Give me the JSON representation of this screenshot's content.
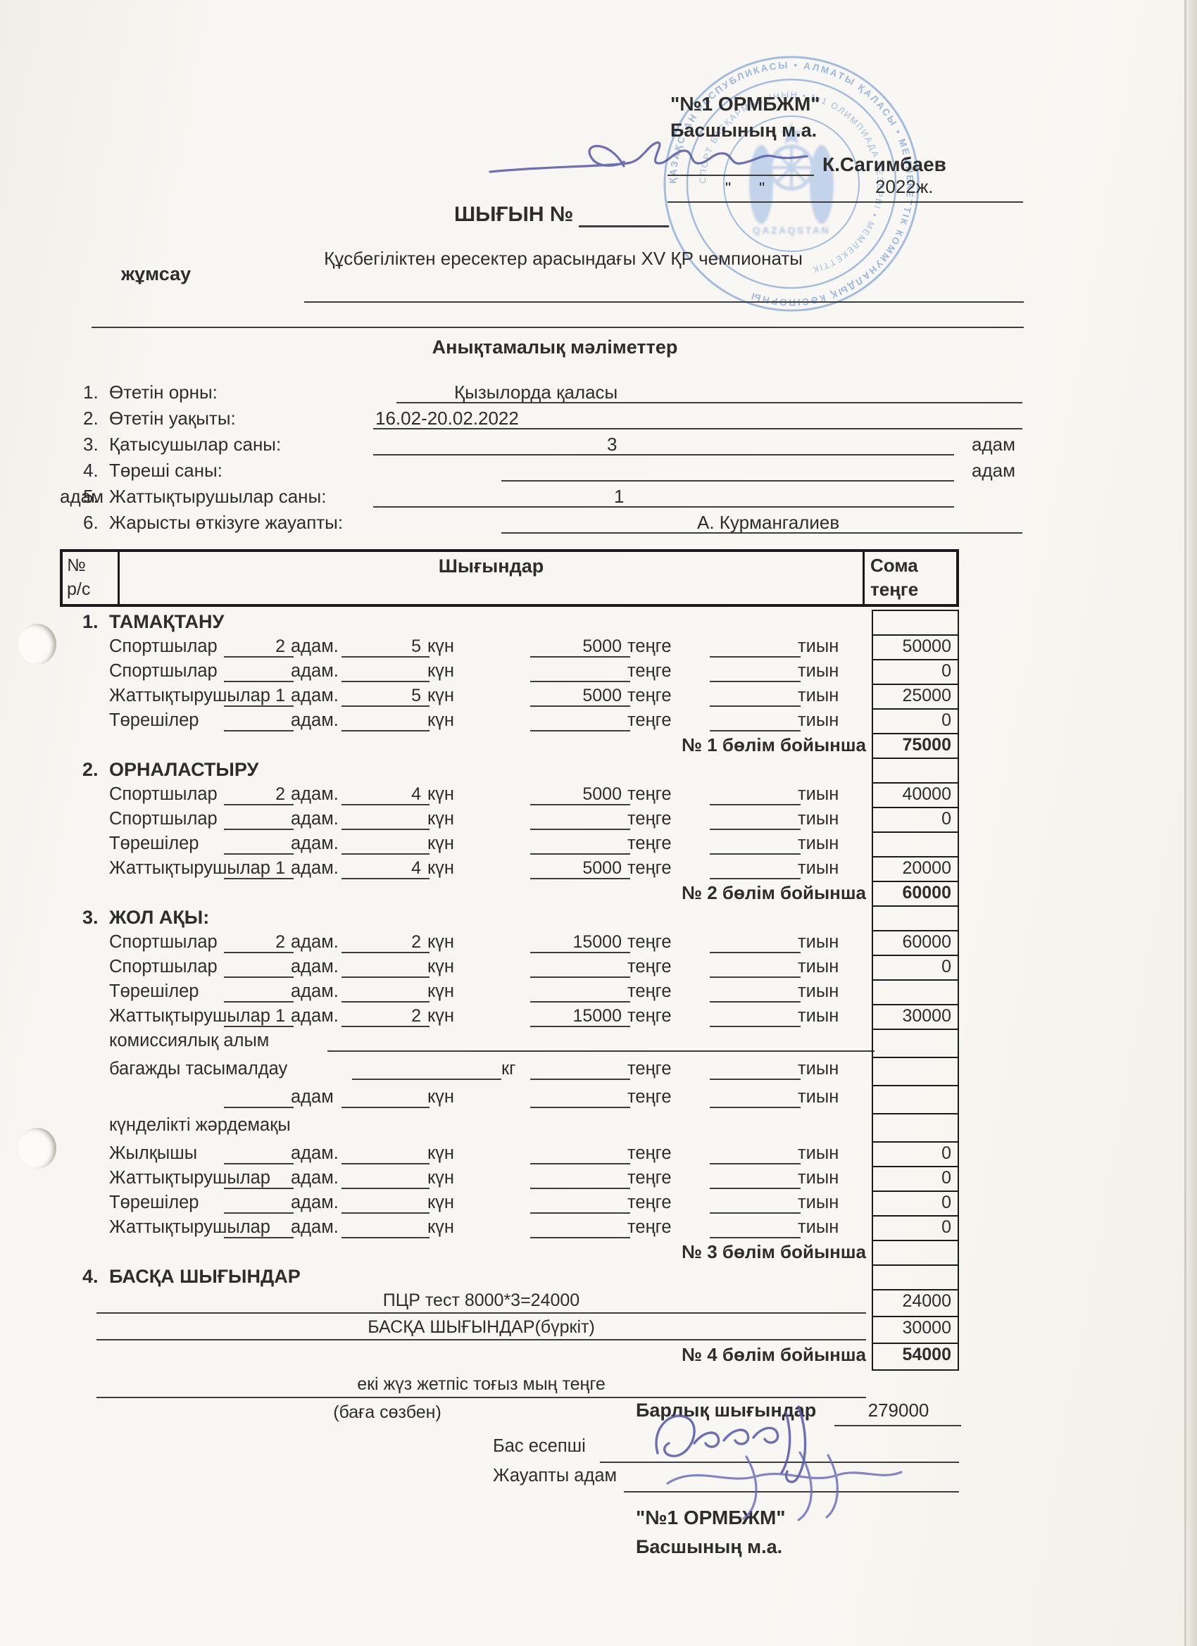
{
  "colors": {
    "paper": "#f7f5f0",
    "ink": "#2d2d2d",
    "line": "#3d3d3d",
    "tborder": "#1a1a1a",
    "stamp": "#7ea4d8",
    "sig": "#5557a9"
  },
  "header": {
    "org_name": "\"№1 ОРМБЖМ\"",
    "org_role": "Басшының м.а.",
    "approver_name": "К.Сагимбаев",
    "quote_open": "\"",
    "quote_close": "\"",
    "year": "2022ж.",
    "doc_title": "ШЫҒЫН №",
    "purpose_label": "жұмсау",
    "event_title": "Құсбегіліктен ересектер арасындағы XV ҚР чемпионаты"
  },
  "stamp": {
    "outer_text": "ҚАЗАҚСТАН РЕСПУБЛИКАСЫ • АЛМАТЫ ҚАЛАСЫ • МЕМЛЕКЕТТІК КОММУНАЛДЫҚ КӘСІПОРНЫ",
    "inner_text": "СПОРТ БАСҚАРМАСЫНЫҢ • №1 ОЛИМПИАДА РЕЗЕРВІ • МЕМЛЕКЕТТІК",
    "center_text": "QAZAQSTAN"
  },
  "info": {
    "title": "Анықтамалық мәліметтер",
    "rows": [
      {
        "num": "1.",
        "label": "Өтетін орны:",
        "value": "Қызылорда қаласы",
        "suffix": ""
      },
      {
        "num": "2.",
        "label": "Өтетін уақыты:",
        "value": "16.02-20.02.2022",
        "suffix": ""
      },
      {
        "num": "3.",
        "label": "Қатысушылар саны:",
        "value": "3",
        "suffix": "адам"
      },
      {
        "num": "4.",
        "label": "Төреші саны:",
        "value": "",
        "suffix": "адам"
      },
      {
        "num": "5.",
        "label": "Жаттықтырушылар саны:",
        "value": "1",
        "suffix": "адам"
      },
      {
        "num": "6.",
        "label": "Жарысты өткізуге жауапты:",
        "value": "А. Курмангалиев",
        "suffix": ""
      }
    ]
  },
  "table": {
    "header": {
      "col1_line1": "№",
      "col1_line2": "р/с",
      "col2": "Шығындар",
      "col3_line1": "Сома",
      "col3_line2": "теңге"
    },
    "units": {
      "u1": "адам.",
      "u1_nodot": "адам",
      "u2": "күн",
      "u3": "теңге",
      "u4": "тиын",
      "kg": "кг"
    },
    "rows": [
      {
        "type": "section",
        "num": "1.",
        "title": "ТАМАҚТАНУ",
        "amount": ""
      },
      {
        "type": "entry",
        "label": "Спортшылар",
        "qty": "2",
        "days": "5",
        "rate": "5000",
        "tiyn": "",
        "amount": "50000"
      },
      {
        "type": "entry",
        "label": "Спортшылар",
        "qty": "",
        "days": "",
        "rate": "",
        "tiyn": "",
        "amount": "0"
      },
      {
        "type": "entry",
        "label": "Жаттықтырушылар",
        "qty": "1",
        "days": "5",
        "rate": "5000",
        "tiyn": "",
        "amount": "25000"
      },
      {
        "type": "entry",
        "label": "Төрешілер",
        "qty": "",
        "days": "",
        "rate": "",
        "tiyn": "",
        "amount": "0"
      },
      {
        "type": "subtotal",
        "label": "№ 1 бөлім бойынша",
        "amount": "75000"
      },
      {
        "type": "section",
        "num": "2.",
        "title": "ОРНАЛАСТЫРУ",
        "amount": ""
      },
      {
        "type": "entry",
        "label": "Спортшылар",
        "qty": "2",
        "days": "4",
        "rate": "5000",
        "tiyn": "",
        "amount": "40000"
      },
      {
        "type": "entry",
        "label": "Спортшылар",
        "qty": "",
        "days": "",
        "rate": "",
        "tiyn": "",
        "amount": "0"
      },
      {
        "type": "entry",
        "label": "Төрешілер",
        "qty": "",
        "days": "",
        "rate": "",
        "tiyn": "",
        "amount": ""
      },
      {
        "type": "entry",
        "label": "Жаттықтырушылар",
        "qty": "1",
        "days": "4",
        "rate": "5000",
        "tiyn": "",
        "amount": "20000"
      },
      {
        "type": "subtotal",
        "label": "№ 2 бөлім бойынша",
        "amount": "60000"
      },
      {
        "type": "section",
        "num": "3.",
        "title": "ЖОЛ АҚЫ:",
        "amount": ""
      },
      {
        "type": "entry",
        "label": "Спортшылар",
        "qty": "2",
        "days": "2",
        "rate": "15000",
        "tiyn": "",
        "amount": "60000"
      },
      {
        "type": "entry",
        "label": "Спортшылар",
        "qty": "",
        "days": "",
        "rate": "",
        "tiyn": "",
        "amount": "0"
      },
      {
        "type": "entry",
        "label": "Төрешілер",
        "qty": "",
        "days": "",
        "rate": "",
        "tiyn": "",
        "amount": ""
      },
      {
        "type": "entry",
        "label": "Жаттықтырушылар",
        "qty": "1",
        "days": "2",
        "rate": "15000",
        "tiyn": "",
        "amount": "30000"
      },
      {
        "type": "labelline",
        "label": "комиссиялық алым",
        "amount": ""
      },
      {
        "type": "baggage",
        "label": "багажды тасымалдау",
        "amount": ""
      },
      {
        "type": "cont",
        "amount": ""
      },
      {
        "type": "labelonly",
        "label": "күнделікті жәрдемақы",
        "amount": ""
      },
      {
        "type": "entry",
        "label": "Жылқышы",
        "qty": "",
        "days": "",
        "rate": "",
        "tiyn": "",
        "amount": "0"
      },
      {
        "type": "entry",
        "label": "Жаттықтырушылар",
        "qty": "",
        "days": "",
        "rate": "",
        "tiyn": "",
        "amount": "0"
      },
      {
        "type": "entry",
        "label": "Төрешілер",
        "qty": "",
        "days": "",
        "rate": "",
        "tiyn": "",
        "amount": "0"
      },
      {
        "type": "entry",
        "label": "Жаттықтырушылар",
        "qty": "",
        "days": "",
        "rate": "",
        "tiyn": "",
        "amount": "0"
      },
      {
        "type": "subtotal",
        "label": "№ 3 бөлім бойынша",
        "amount": ""
      },
      {
        "type": "section",
        "num": "4.",
        "title": "БАСҚА ШЫҒЫНДАР",
        "amount": ""
      },
      {
        "type": "free",
        "text": "ПЦР тест 8000*3=24000",
        "amount": "24000"
      },
      {
        "type": "free",
        "text": "БАСҚА ШЫҒЫНДАР(бүркіт)",
        "amount": "30000"
      },
      {
        "type": "subtotal",
        "label": "№ 4 бөлім бойынша",
        "amount": "54000"
      }
    ]
  },
  "totals": {
    "amount_words": "екі жүз жетпіс тоғыз мың теңге",
    "words_caption": "(баға сөзбен)",
    "total_label": "Барлық шығындар",
    "total_value": "279000"
  },
  "footer": {
    "accountant_label": "Бас есепші",
    "responsible_label": "Жауапты адам",
    "org_name": "\"№1 ОРМБЖМ\"",
    "org_role": "Басшының м.а."
  }
}
